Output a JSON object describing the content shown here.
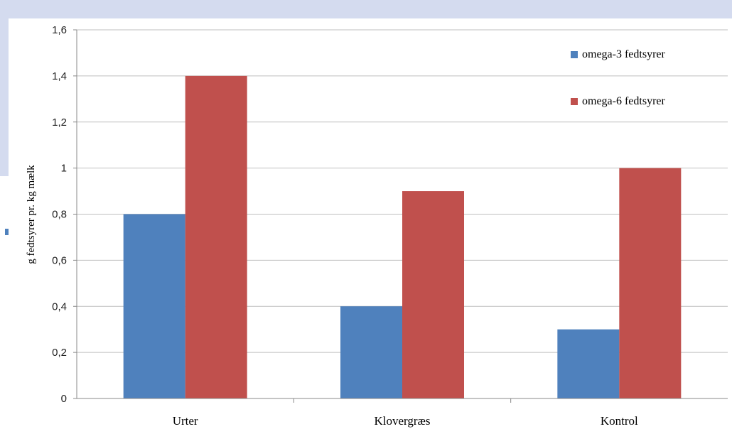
{
  "chart_data": {
    "type": "bar",
    "title": "",
    "xlabel": "",
    "ylabel": "g fedtsyrer pr. kg mælk",
    "ylim": [
      0,
      1.6
    ],
    "yticks": [
      "0",
      "0,2",
      "0,4",
      "0,6",
      "0,8",
      "1",
      "1,2",
      "1,4",
      "1,6"
    ],
    "categories": [
      "Urter",
      "Klovergræs",
      "Kontrol"
    ],
    "series": [
      {
        "name": "omega-3 fedtsyrer",
        "values": [
          0.8,
          0.4,
          0.3
        ],
        "color": "#4f81bd"
      },
      {
        "name": "omega-6 fedtsyrer",
        "values": [
          1.4,
          0.9,
          1.0
        ],
        "color": "#c0504d"
      }
    ],
    "grid": true,
    "legend_position": "top-right"
  }
}
